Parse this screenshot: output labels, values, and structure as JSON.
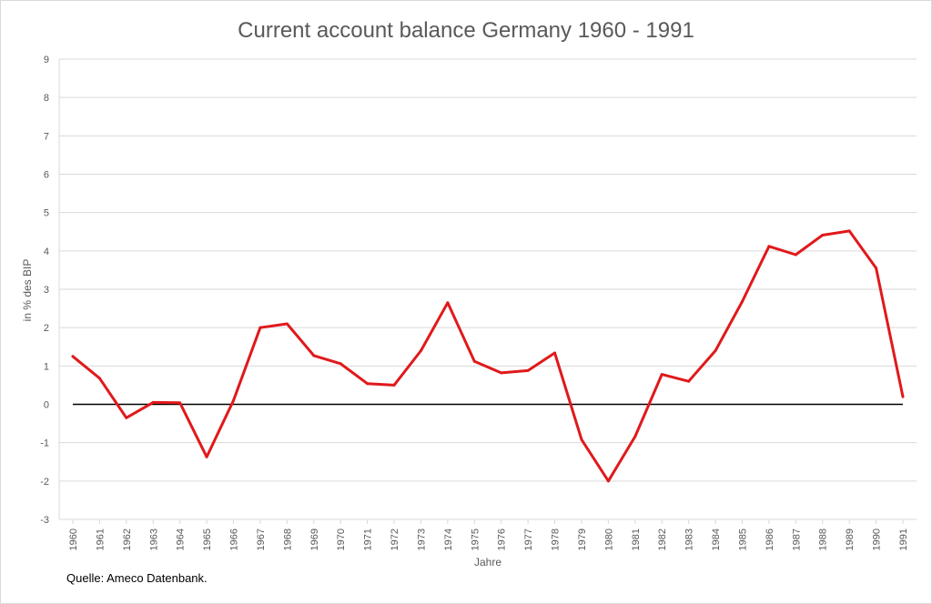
{
  "chart_data": {
    "type": "line",
    "title": "Current account balance Germany 1960 - 1991",
    "xlabel": "Jahre",
    "ylabel": "in % des BIP",
    "source": "Quelle: Ameco Datenbank.",
    "ylim": [
      -3,
      9
    ],
    "yticks": [
      -3,
      -2,
      -1,
      0,
      1,
      2,
      3,
      4,
      5,
      6,
      7,
      8,
      9
    ],
    "grid": true,
    "legend": "none",
    "x": [
      "1960",
      "1961",
      "1962",
      "1963",
      "1964",
      "1965",
      "1966",
      "1967",
      "1968",
      "1969",
      "1970",
      "1971",
      "1972",
      "1973",
      "1974",
      "1975",
      "1976",
      "1977",
      "1978",
      "1979",
      "1980",
      "1981",
      "1982",
      "1983",
      "1984",
      "1985",
      "1986",
      "1987",
      "1988",
      "1989",
      "1990",
      "1991"
    ],
    "series": [
      {
        "color": "#e0191b",
        "values": [
          1.25,
          0.68,
          -0.35,
          0.05,
          0.04,
          -1.37,
          0.1,
          2.0,
          2.1,
          1.27,
          1.06,
          0.54,
          0.5,
          1.4,
          2.65,
          1.12,
          0.82,
          0.88,
          1.34,
          -0.92,
          -2.0,
          -0.84,
          0.78,
          0.6,
          1.4,
          2.68,
          4.12,
          3.9,
          4.41,
          4.52,
          3.55,
          0.2
        ]
      }
    ]
  },
  "colors": {
    "line": "#e0191b",
    "zero_line": "#000000",
    "grid": "#d9d9d9",
    "text": "#595959"
  }
}
